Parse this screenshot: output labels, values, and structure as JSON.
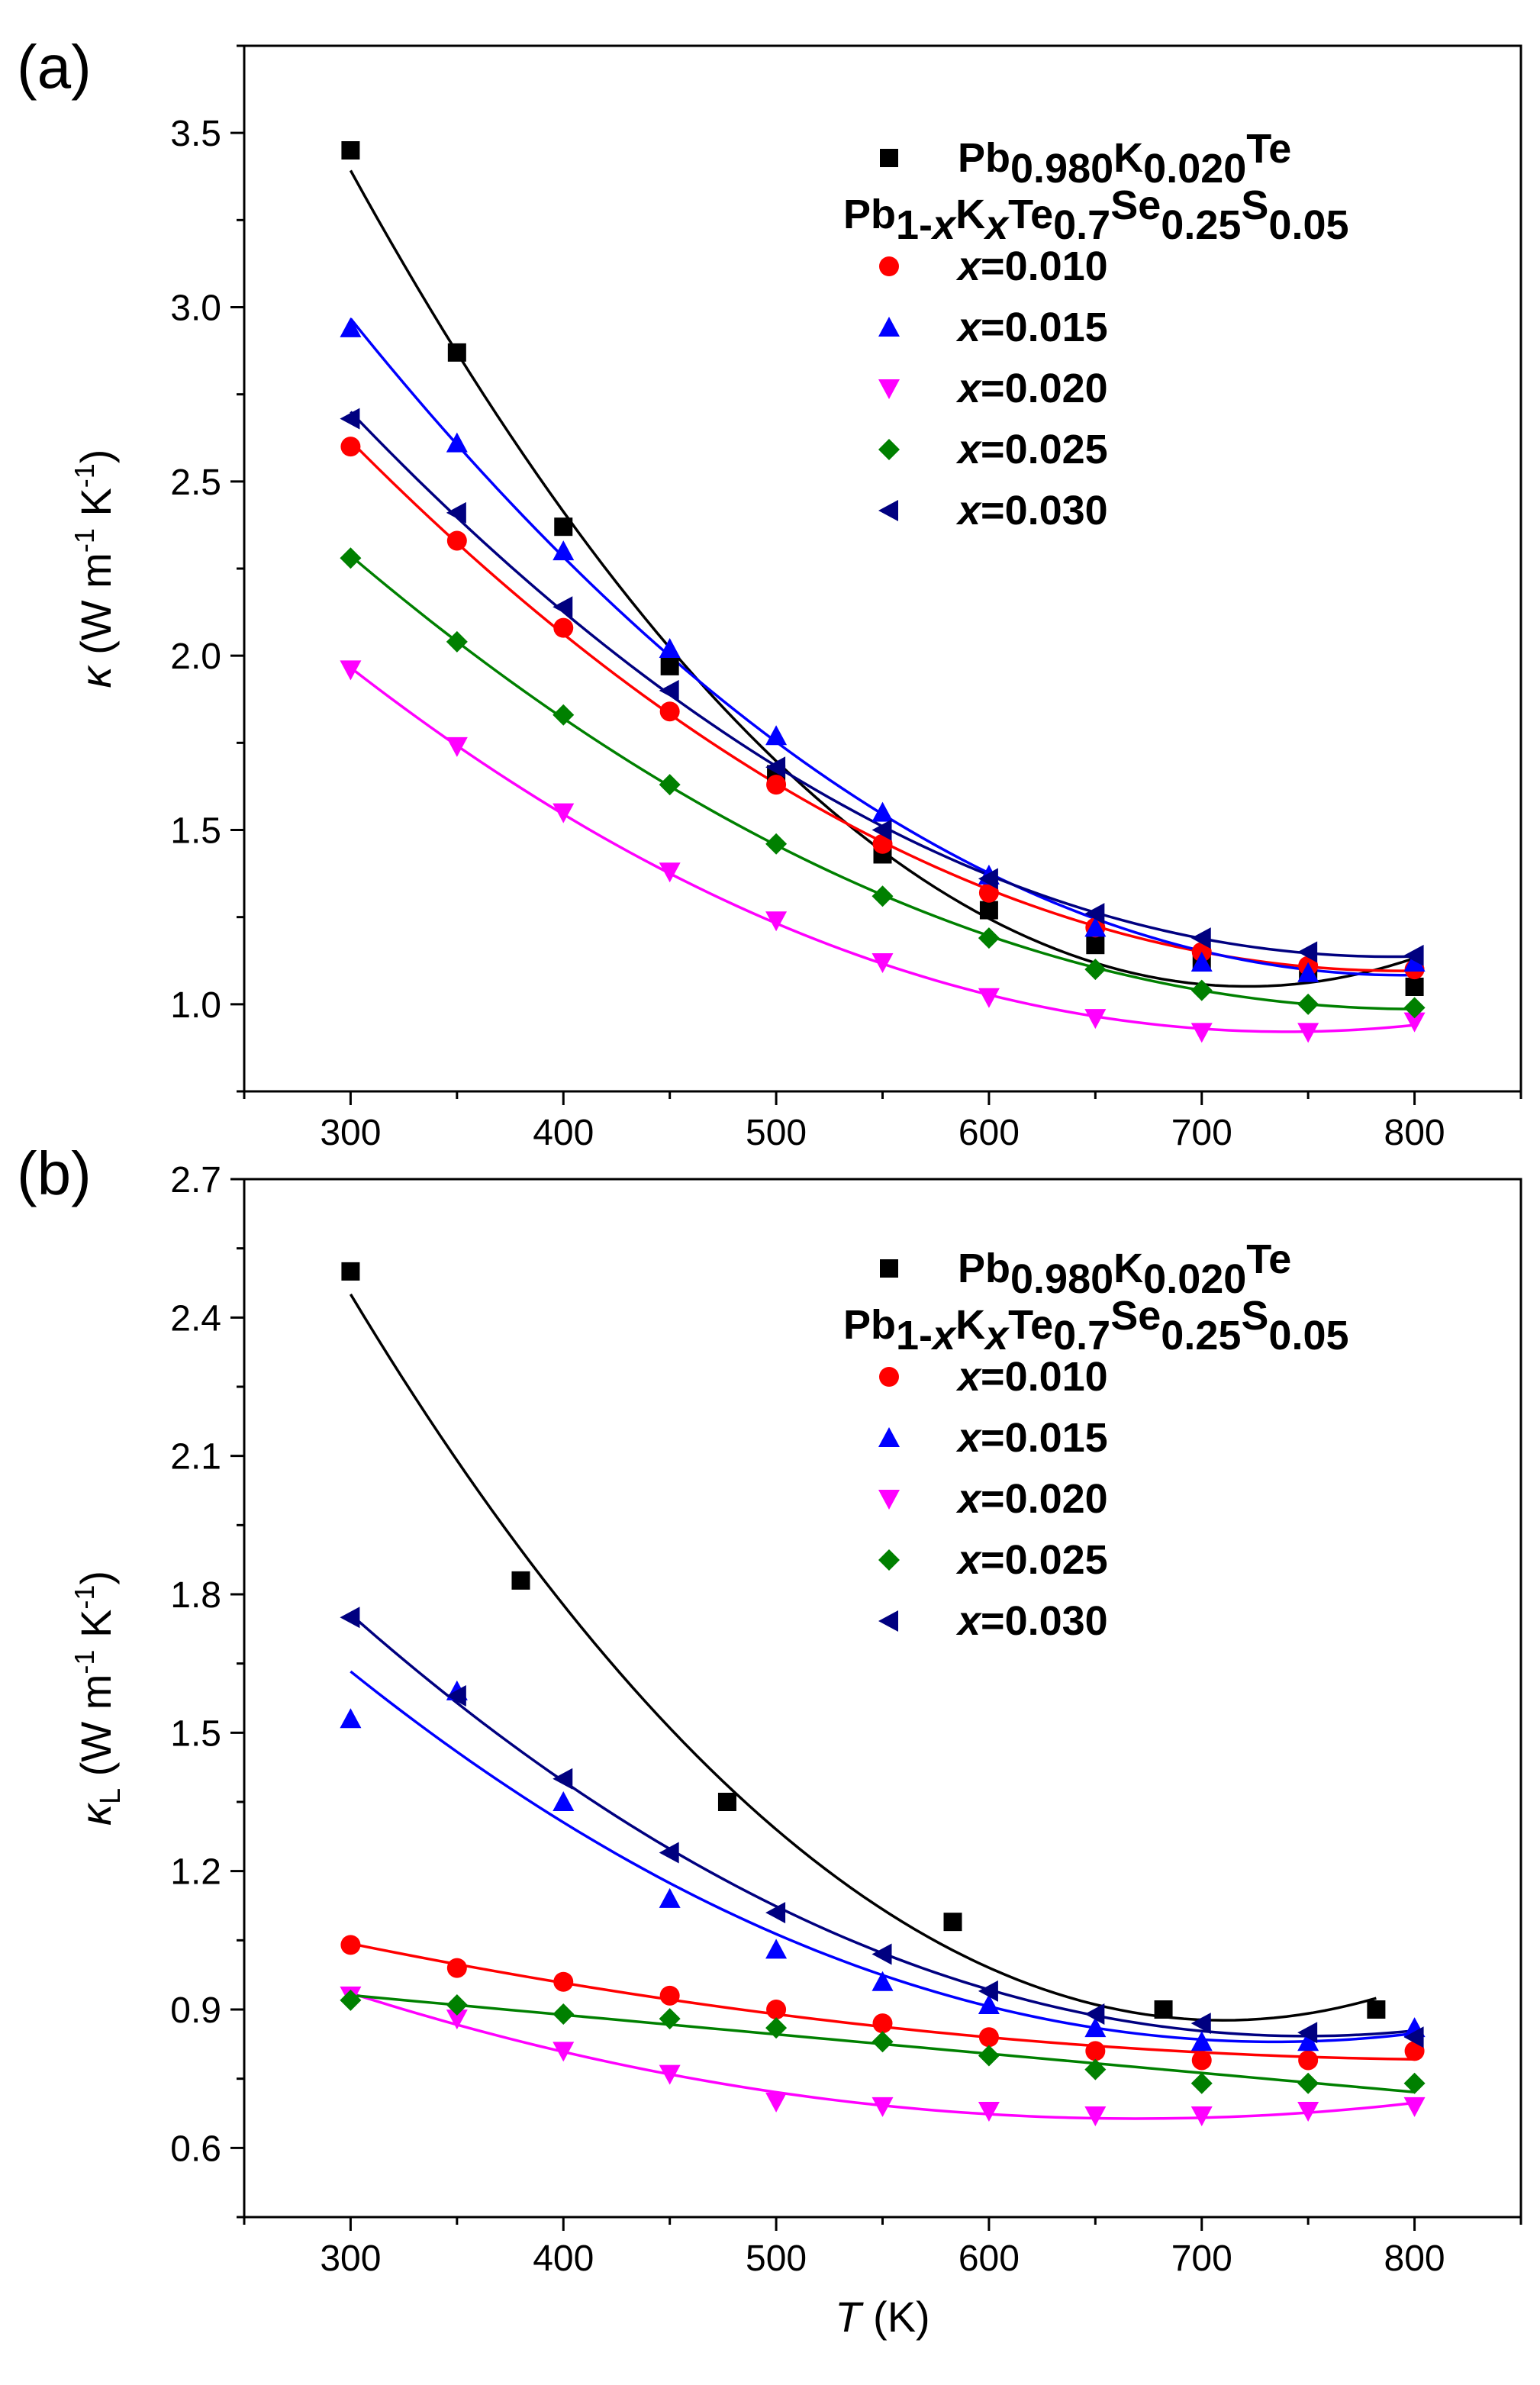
{
  "chart_data": [
    {
      "type": "scatter",
      "panel_label": "(a)",
      "ylabel_symbol": "κ",
      "ylabel_sub": "",
      "ylabel_units": "(W m",
      "ylabel_exp1": "-1",
      "ylabel_mid": " K",
      "ylabel_exp2": "-1",
      "ylabel_close": ")",
      "xlabel": "",
      "xlim": [
        250,
        850
      ],
      "ylim": [
        0.75,
        3.75
      ],
      "x_ticks": [
        300,
        400,
        500,
        600,
        700,
        800
      ],
      "x_tick_labels": [
        "300",
        "400",
        "500",
        "600",
        "700",
        "800"
      ],
      "y_ticks": [
        1.0,
        1.5,
        2.0,
        2.5,
        3.0,
        3.5
      ],
      "y_tick_labels": [
        "1.0",
        "1.5",
        "2.0",
        "2.5",
        "3.0",
        "3.5"
      ],
      "legend": {
        "ref_base": "Pb",
        "ref_sub1": "0.980",
        "ref_k": "K",
        "ref_sub2": "0.020",
        "ref_sup": "Te",
        "family_parts": [
          "Pb",
          "1-",
          "x",
          "K",
          "x",
          "Te",
          "0.7",
          "Se",
          "0.25",
          "S",
          "0.05"
        ]
      },
      "series": [
        {
          "name": "Pb0.980K0.020Te",
          "color": "#000000",
          "marker": "square",
          "label": "",
          "x": [
            300,
            350,
            400,
            450,
            500,
            550,
            600,
            650,
            700,
            750,
            800
          ],
          "y": [
            3.45,
            2.87,
            2.37,
            1.97,
            1.66,
            1.43,
            1.27,
            1.17,
            1.12,
            1.09,
            1.05
          ]
        },
        {
          "name": "x=0.010",
          "color": "#ff0000",
          "marker": "circle",
          "label": "x",
          "label_rest": "=0.010",
          "x": [
            300,
            350,
            400,
            450,
            500,
            550,
            600,
            650,
            700,
            750,
            800
          ],
          "y": [
            2.6,
            2.33,
            2.08,
            1.84,
            1.63,
            1.46,
            1.32,
            1.22,
            1.15,
            1.11,
            1.1
          ]
        },
        {
          "name": "x=0.015",
          "color": "#0000ff",
          "marker": "triangle-up",
          "label": "x",
          "label_rest": "=0.015",
          "x": [
            300,
            350,
            400,
            450,
            500,
            550,
            600,
            650,
            700,
            750,
            800
          ],
          "y": [
            2.94,
            2.61,
            2.3,
            2.02,
            1.77,
            1.55,
            1.37,
            1.22,
            1.12,
            1.09,
            1.12
          ]
        },
        {
          "name": "x=0.020",
          "color": "#ff00ff",
          "marker": "triangle-down",
          "label": "x",
          "label_rest": "=0.020",
          "x": [
            300,
            350,
            400,
            450,
            500,
            550,
            600,
            650,
            700,
            750,
            800
          ],
          "y": [
            1.96,
            1.74,
            1.55,
            1.38,
            1.24,
            1.12,
            1.02,
            0.96,
            0.92,
            0.92,
            0.95
          ]
        },
        {
          "name": "x=0.025",
          "color": "#008000",
          "marker": "diamond",
          "label": "x",
          "label_rest": "=0.025",
          "x": [
            300,
            350,
            400,
            450,
            500,
            550,
            600,
            650,
            700,
            750,
            800
          ],
          "y": [
            2.28,
            2.04,
            1.83,
            1.63,
            1.46,
            1.31,
            1.19,
            1.1,
            1.04,
            1.0,
            0.99
          ]
        },
        {
          "name": "x=0.030",
          "color": "#000080",
          "marker": "triangle-left",
          "label": "x",
          "label_rest": "=0.030",
          "x": [
            300,
            350,
            400,
            450,
            500,
            550,
            600,
            650,
            700,
            750,
            800
          ],
          "y": [
            2.68,
            2.41,
            2.14,
            1.9,
            1.68,
            1.5,
            1.36,
            1.26,
            1.19,
            1.15,
            1.14
          ]
        }
      ]
    },
    {
      "type": "scatter",
      "panel_label": "(b)",
      "ylabel_symbol": "κ",
      "ylabel_sub": "L",
      "ylabel_units": "(W m",
      "ylabel_exp1": "-1",
      "ylabel_mid": " K",
      "ylabel_exp2": "-1",
      "ylabel_close": ")",
      "xlabel": "T",
      "xlabel_units": " (K)",
      "xlim": [
        250,
        850
      ],
      "ylim": [
        0.45,
        2.7
      ],
      "x_ticks": [
        300,
        400,
        500,
        600,
        700,
        800
      ],
      "x_tick_labels": [
        "300",
        "400",
        "500",
        "600",
        "700",
        "800"
      ],
      "y_ticks": [
        0.6,
        0.9,
        1.2,
        1.5,
        1.8,
        2.1,
        2.4,
        2.7
      ],
      "y_tick_labels": [
        "0.6",
        "0.9",
        "1.2",
        "1.5",
        "1.8",
        "2.1",
        "2.4",
        "2.7"
      ],
      "legend": {
        "ref_base": "Pb",
        "ref_sub1": "0.980",
        "ref_k": "K",
        "ref_sub2": "0.020",
        "ref_sup": "Te",
        "family_parts": [
          "Pb",
          "1-",
          "x",
          "K",
          "x",
          "Te",
          "0.7",
          "Se",
          "0.25",
          "S",
          "0.05"
        ]
      },
      "series": [
        {
          "name": "Pb0.980K0.020Te",
          "color": "#000000",
          "marker": "square",
          "label": "",
          "x": [
            300,
            380,
            477,
            583,
            682,
            782
          ],
          "y": [
            2.5,
            1.83,
            1.35,
            1.09,
            0.9,
            0.9
          ]
        },
        {
          "name": "x=0.010",
          "color": "#ff0000",
          "marker": "circle",
          "label": "x",
          "label_rest": "=0.010",
          "x": [
            300,
            350,
            400,
            450,
            500,
            550,
            600,
            650,
            700,
            750,
            800
          ],
          "y": [
            1.04,
            0.99,
            0.96,
            0.93,
            0.9,
            0.87,
            0.84,
            0.81,
            0.79,
            0.79,
            0.81
          ]
        },
        {
          "name": "x=0.015",
          "color": "#0000ff",
          "marker": "triangle-up",
          "label": "x",
          "label_rest": "=0.015",
          "x": [
            300,
            350,
            400,
            450,
            500,
            550,
            600,
            650,
            700,
            750,
            800
          ],
          "y": [
            1.53,
            1.59,
            1.35,
            1.14,
            1.03,
            0.96,
            0.91,
            0.86,
            0.83,
            0.83,
            0.86
          ]
        },
        {
          "name": "x=0.020",
          "color": "#ff00ff",
          "marker": "triangle-down",
          "label": "x",
          "label_rest": "=0.020",
          "x": [
            300,
            350,
            400,
            450,
            500,
            550,
            600,
            650,
            700,
            750,
            800
          ],
          "y": [
            0.93,
            0.88,
            0.81,
            0.76,
            0.7,
            0.69,
            0.68,
            0.67,
            0.67,
            0.68,
            0.69
          ]
        },
        {
          "name": "x=0.025",
          "color": "#008000",
          "marker": "diamond",
          "label": "x",
          "label_rest": "=0.025",
          "x": [
            300,
            350,
            400,
            450,
            500,
            550,
            600,
            650,
            700,
            750,
            800
          ],
          "y": [
            0.92,
            0.91,
            0.89,
            0.88,
            0.86,
            0.83,
            0.8,
            0.77,
            0.74,
            0.74,
            0.74
          ]
        },
        {
          "name": "x=0.030",
          "color": "#000080",
          "marker": "triangle-left",
          "label": "x",
          "label_rest": "=0.030",
          "x": [
            300,
            350,
            400,
            450,
            500,
            550,
            600,
            650,
            700,
            750,
            800
          ],
          "y": [
            1.75,
            1.58,
            1.4,
            1.24,
            1.11,
            1.02,
            0.94,
            0.89,
            0.87,
            0.85,
            0.84
          ]
        }
      ]
    }
  ]
}
